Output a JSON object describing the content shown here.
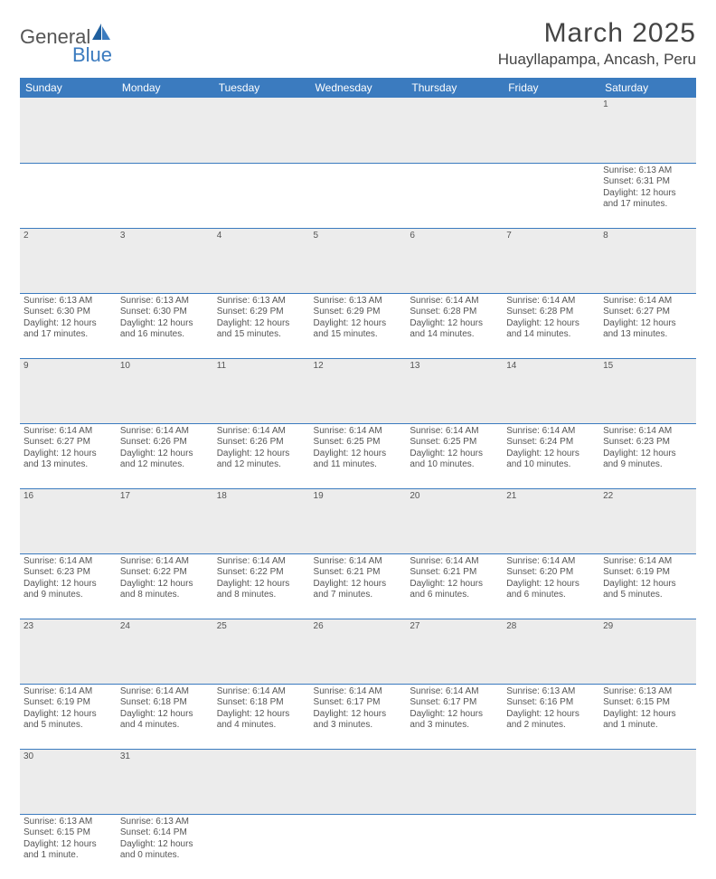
{
  "brand": {
    "general": "General",
    "blue": "Blue"
  },
  "title": "March 2025",
  "location": "Huayllapampa, Ancash, Peru",
  "colors": {
    "header_bg": "#3b7bbf",
    "header_text": "#ffffff",
    "daynum_bg": "#ececec",
    "cell_border": "#3b7bbf",
    "body_text": "#555555"
  },
  "fonts": {
    "title_size": 30,
    "location_size": 17,
    "weekday_size": 12,
    "daynum_size": 11,
    "cell_size": 10
  },
  "weekdays": [
    "Sunday",
    "Monday",
    "Tuesday",
    "Wednesday",
    "Thursday",
    "Friday",
    "Saturday"
  ],
  "weeks": [
    [
      null,
      null,
      null,
      null,
      null,
      null,
      {
        "n": "1",
        "sr": "Sunrise: 6:13 AM",
        "ss": "Sunset: 6:31 PM",
        "d1": "Daylight: 12 hours",
        "d2": "and 17 minutes."
      }
    ],
    [
      {
        "n": "2",
        "sr": "Sunrise: 6:13 AM",
        "ss": "Sunset: 6:30 PM",
        "d1": "Daylight: 12 hours",
        "d2": "and 17 minutes."
      },
      {
        "n": "3",
        "sr": "Sunrise: 6:13 AM",
        "ss": "Sunset: 6:30 PM",
        "d1": "Daylight: 12 hours",
        "d2": "and 16 minutes."
      },
      {
        "n": "4",
        "sr": "Sunrise: 6:13 AM",
        "ss": "Sunset: 6:29 PM",
        "d1": "Daylight: 12 hours",
        "d2": "and 15 minutes."
      },
      {
        "n": "5",
        "sr": "Sunrise: 6:13 AM",
        "ss": "Sunset: 6:29 PM",
        "d1": "Daylight: 12 hours",
        "d2": "and 15 minutes."
      },
      {
        "n": "6",
        "sr": "Sunrise: 6:14 AM",
        "ss": "Sunset: 6:28 PM",
        "d1": "Daylight: 12 hours",
        "d2": "and 14 minutes."
      },
      {
        "n": "7",
        "sr": "Sunrise: 6:14 AM",
        "ss": "Sunset: 6:28 PM",
        "d1": "Daylight: 12 hours",
        "d2": "and 14 minutes."
      },
      {
        "n": "8",
        "sr": "Sunrise: 6:14 AM",
        "ss": "Sunset: 6:27 PM",
        "d1": "Daylight: 12 hours",
        "d2": "and 13 minutes."
      }
    ],
    [
      {
        "n": "9",
        "sr": "Sunrise: 6:14 AM",
        "ss": "Sunset: 6:27 PM",
        "d1": "Daylight: 12 hours",
        "d2": "and 13 minutes."
      },
      {
        "n": "10",
        "sr": "Sunrise: 6:14 AM",
        "ss": "Sunset: 6:26 PM",
        "d1": "Daylight: 12 hours",
        "d2": "and 12 minutes."
      },
      {
        "n": "11",
        "sr": "Sunrise: 6:14 AM",
        "ss": "Sunset: 6:26 PM",
        "d1": "Daylight: 12 hours",
        "d2": "and 12 minutes."
      },
      {
        "n": "12",
        "sr": "Sunrise: 6:14 AM",
        "ss": "Sunset: 6:25 PM",
        "d1": "Daylight: 12 hours",
        "d2": "and 11 minutes."
      },
      {
        "n": "13",
        "sr": "Sunrise: 6:14 AM",
        "ss": "Sunset: 6:25 PM",
        "d1": "Daylight: 12 hours",
        "d2": "and 10 minutes."
      },
      {
        "n": "14",
        "sr": "Sunrise: 6:14 AM",
        "ss": "Sunset: 6:24 PM",
        "d1": "Daylight: 12 hours",
        "d2": "and 10 minutes."
      },
      {
        "n": "15",
        "sr": "Sunrise: 6:14 AM",
        "ss": "Sunset: 6:23 PM",
        "d1": "Daylight: 12 hours",
        "d2": "and 9 minutes."
      }
    ],
    [
      {
        "n": "16",
        "sr": "Sunrise: 6:14 AM",
        "ss": "Sunset: 6:23 PM",
        "d1": "Daylight: 12 hours",
        "d2": "and 9 minutes."
      },
      {
        "n": "17",
        "sr": "Sunrise: 6:14 AM",
        "ss": "Sunset: 6:22 PM",
        "d1": "Daylight: 12 hours",
        "d2": "and 8 minutes."
      },
      {
        "n": "18",
        "sr": "Sunrise: 6:14 AM",
        "ss": "Sunset: 6:22 PM",
        "d1": "Daylight: 12 hours",
        "d2": "and 8 minutes."
      },
      {
        "n": "19",
        "sr": "Sunrise: 6:14 AM",
        "ss": "Sunset: 6:21 PM",
        "d1": "Daylight: 12 hours",
        "d2": "and 7 minutes."
      },
      {
        "n": "20",
        "sr": "Sunrise: 6:14 AM",
        "ss": "Sunset: 6:21 PM",
        "d1": "Daylight: 12 hours",
        "d2": "and 6 minutes."
      },
      {
        "n": "21",
        "sr": "Sunrise: 6:14 AM",
        "ss": "Sunset: 6:20 PM",
        "d1": "Daylight: 12 hours",
        "d2": "and 6 minutes."
      },
      {
        "n": "22",
        "sr": "Sunrise: 6:14 AM",
        "ss": "Sunset: 6:19 PM",
        "d1": "Daylight: 12 hours",
        "d2": "and 5 minutes."
      }
    ],
    [
      {
        "n": "23",
        "sr": "Sunrise: 6:14 AM",
        "ss": "Sunset: 6:19 PM",
        "d1": "Daylight: 12 hours",
        "d2": "and 5 minutes."
      },
      {
        "n": "24",
        "sr": "Sunrise: 6:14 AM",
        "ss": "Sunset: 6:18 PM",
        "d1": "Daylight: 12 hours",
        "d2": "and 4 minutes."
      },
      {
        "n": "25",
        "sr": "Sunrise: 6:14 AM",
        "ss": "Sunset: 6:18 PM",
        "d1": "Daylight: 12 hours",
        "d2": "and 4 minutes."
      },
      {
        "n": "26",
        "sr": "Sunrise: 6:14 AM",
        "ss": "Sunset: 6:17 PM",
        "d1": "Daylight: 12 hours",
        "d2": "and 3 minutes."
      },
      {
        "n": "27",
        "sr": "Sunrise: 6:14 AM",
        "ss": "Sunset: 6:17 PM",
        "d1": "Daylight: 12 hours",
        "d2": "and 3 minutes."
      },
      {
        "n": "28",
        "sr": "Sunrise: 6:13 AM",
        "ss": "Sunset: 6:16 PM",
        "d1": "Daylight: 12 hours",
        "d2": "and 2 minutes."
      },
      {
        "n": "29",
        "sr": "Sunrise: 6:13 AM",
        "ss": "Sunset: 6:15 PM",
        "d1": "Daylight: 12 hours",
        "d2": "and 1 minute."
      }
    ],
    [
      {
        "n": "30",
        "sr": "Sunrise: 6:13 AM",
        "ss": "Sunset: 6:15 PM",
        "d1": "Daylight: 12 hours",
        "d2": "and 1 minute."
      },
      {
        "n": "31",
        "sr": "Sunrise: 6:13 AM",
        "ss": "Sunset: 6:14 PM",
        "d1": "Daylight: 12 hours",
        "d2": "and 0 minutes."
      },
      null,
      null,
      null,
      null,
      null
    ]
  ]
}
